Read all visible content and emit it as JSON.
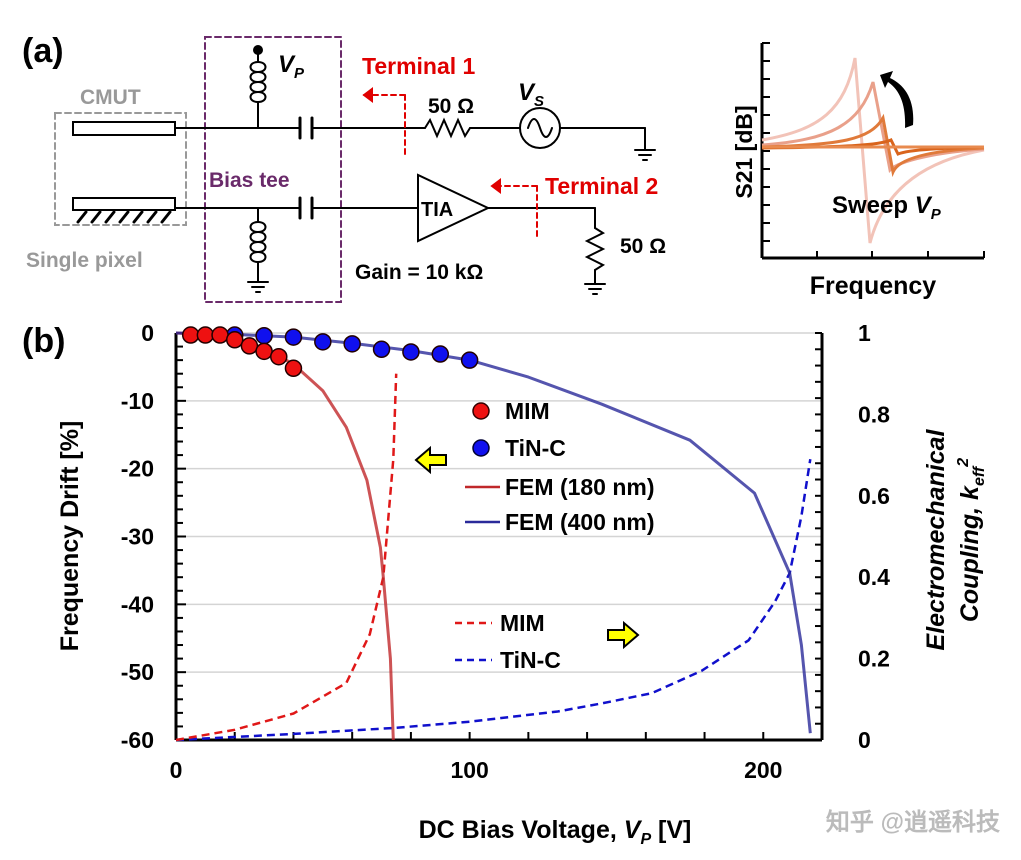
{
  "panel_a": {
    "label": "(a)",
    "cmut_label": "CMUT",
    "pixel_label": "Single pixel",
    "bias_tee_label": "Bias tee",
    "vp_label": "V",
    "vp_sub": "P",
    "vs_label": "V",
    "vs_sub": "S",
    "terminal1": "Terminal 1",
    "terminal2": "Terminal 2",
    "r1_label": "50 Ω",
    "r2_label": "50 Ω",
    "tia_label": "TIA",
    "gain_label": "Gain = 10 kΩ",
    "colors": {
      "terminal": "#e00000",
      "bias_tee": "#6a2a6a",
      "cmut": "#999999"
    },
    "inset": {
      "ylabel": "S21 [dB]",
      "xlabel": "Frequency",
      "annotation": "Sweep ",
      "annotation_var": "V",
      "annotation_sub": "P",
      "curve_colors": [
        "#f2c3b8",
        "#e9a08a",
        "#e07a3a",
        "#d9641c",
        "#e88a4e"
      ]
    }
  },
  "panel_b": {
    "label": "(b)"
  },
  "chart_data": {
    "type": "scatter+line",
    "xlabel": {
      "text": "DC Bias Voltage, ",
      "var": "V",
      "sub": "P",
      "unit": " [V]"
    },
    "ylabel": "Frequency Drift [%]",
    "y2label": {
      "line1": "Electromechanical",
      "line2": "Coupling, k",
      "sub": "eff",
      "sup": "2"
    },
    "xlim": [
      0,
      220
    ],
    "ylim": [
      -60,
      0
    ],
    "y2lim": [
      0,
      1
    ],
    "xticks": [
      "0",
      "100",
      "200"
    ],
    "yticks": [
      "0",
      "-10",
      "-20",
      "-30",
      "-40",
      "-50",
      "-60"
    ],
    "y2ticks": [
      "0",
      "0.2",
      "0.4",
      "0.6",
      "0.8",
      "1"
    ],
    "grid": "horizontal",
    "series": [
      {
        "name": "MIM",
        "kind": "markers",
        "axis": "left",
        "color": "#ee1111",
        "x": [
          5,
          10,
          15,
          20,
          25,
          30,
          35,
          40
        ],
        "y": [
          -0.3,
          -0.3,
          -0.3,
          -1.0,
          -1.9,
          -2.7,
          -3.5,
          -5.2
        ]
      },
      {
        "name": "TiN-C",
        "kind": "markers",
        "axis": "left",
        "color": "#1010ee",
        "x": [
          20,
          30,
          40,
          50,
          60,
          70,
          80,
          90,
          100
        ],
        "y": [
          -0.3,
          -0.4,
          -0.6,
          -1.3,
          -1.6,
          -2.4,
          -2.8,
          -3.1,
          -4.0
        ]
      },
      {
        "name": "FEM (180 nm)",
        "kind": "line",
        "axis": "left",
        "color": "#c0282a",
        "x": [
          0,
          10,
          20,
          30,
          40,
          50,
          58,
          65,
          69.6,
          70.6,
          73,
          74
        ],
        "y": [
          0,
          -0.2,
          -0.8,
          -2.2,
          -4.6,
          -8.5,
          -13.9,
          -21.7,
          -31.6,
          -36,
          -48,
          -60
        ]
      },
      {
        "name": "FEM (400 nm)",
        "kind": "line",
        "axis": "left",
        "color": "#2a2a9a",
        "x": [
          0,
          20,
          40,
          60,
          80,
          100,
          120,
          145,
          175,
          197,
          209,
          213,
          216
        ],
        "y": [
          0,
          -0.2,
          -0.6,
          -1.5,
          -2.6,
          -4.0,
          -6.5,
          -10.5,
          -15.8,
          -23.6,
          -35.4,
          -46,
          -59
        ]
      },
      {
        "name": "MIM",
        "kind": "dashed",
        "axis": "right",
        "color": "#e01818",
        "x": [
          0,
          20,
          40,
          58,
          66,
          70.6,
          74,
          75
        ],
        "y": [
          0,
          0.025,
          0.065,
          0.14,
          0.26,
          0.4,
          0.69,
          0.9
        ]
      },
      {
        "name": "TiN-C",
        "kind": "dashed",
        "axis": "right",
        "color": "#1010cc",
        "x": [
          0,
          40,
          75,
          100,
          130,
          145,
          162,
          179,
          195,
          204,
          209,
          213,
          216
        ],
        "y": [
          0,
          0.015,
          0.03,
          0.045,
          0.07,
          0.09,
          0.115,
          0.17,
          0.245,
          0.34,
          0.41,
          0.55,
          0.69
        ]
      }
    ],
    "legend_markers": [
      "MIM",
      "TiN-C",
      "FEM (180 nm)",
      "FEM (400 nm)"
    ],
    "legend_dashed": [
      "MIM",
      "TiN-C"
    ],
    "arrow_color": "#ffff00"
  },
  "watermark": "知乎 @逍遥科技"
}
